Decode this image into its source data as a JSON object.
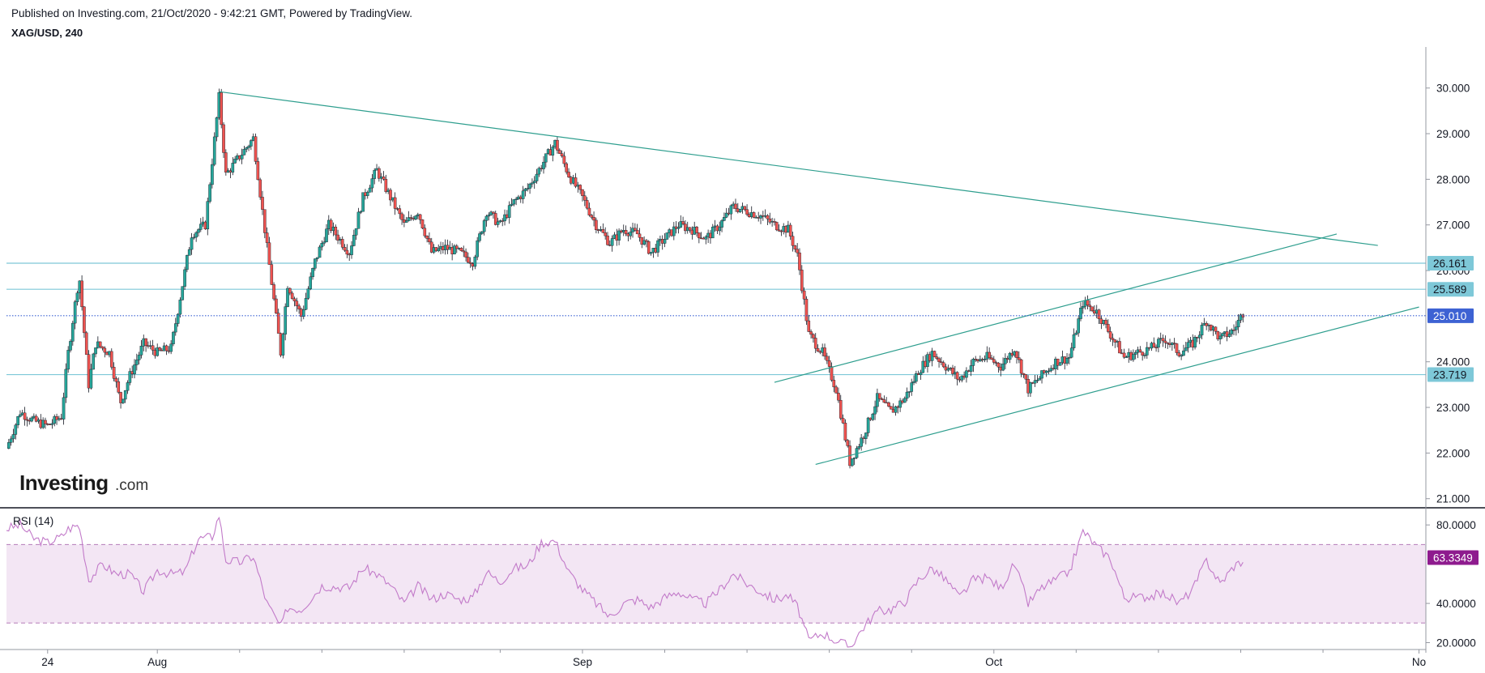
{
  "header": {
    "published": "Published on Investing.com, 21/Oct/2020 - 9:42:21 GMT, Powered by TradingView.",
    "symbol": "XAG/USD, 240"
  },
  "logo": {
    "brand": "Investing",
    "suffix": ".com"
  },
  "colors": {
    "up": "#26a69a",
    "down": "#ef5350",
    "wick": "#131722",
    "trendline": "#2e9e8e",
    "hline": "#7ec8d8",
    "current": "#3d62d3",
    "rsi_line": "#c27ac9",
    "rsi_band": "#f3e6f4",
    "rsi_badge": "#8e1b8e"
  },
  "chart_data": [
    {
      "type": "candlestick",
      "title": "XAG/USD, 240",
      "ylim": [
        20.8,
        30.9
      ],
      "y_ticks": [
        "30.000",
        "29.000",
        "28.000",
        "27.000",
        "26.000",
        "24.000",
        "23.000",
        "22.000",
        "21.000"
      ],
      "y_tick_values": [
        30,
        29,
        28,
        27,
        26,
        24,
        23,
        22,
        21
      ],
      "x_ticks": [
        {
          "label": "24",
          "day": 0
        },
        {
          "label": "Aug",
          "day": 8
        },
        {
          "label": "Sep",
          "day": 39
        },
        {
          "label": "Oct",
          "day": 69
        },
        {
          "label": "No",
          "day": 100
        }
      ],
      "x_minor_days": [
        14,
        20,
        26,
        33,
        45,
        51,
        57,
        63,
        75,
        81,
        87,
        93
      ],
      "x_range_days": [
        -3,
        100.5
      ],
      "close_path": [
        [
          -3,
          22.1
        ],
        [
          -2,
          22.9
        ],
        [
          -1,
          22.7
        ],
        [
          0,
          22.6
        ],
        [
          1,
          22.8
        ],
        [
          1.5,
          24.2
        ],
        [
          2.3,
          25.9
        ],
        [
          3,
          23.5
        ],
        [
          3.5,
          24.4
        ],
        [
          4.5,
          24.2
        ],
        [
          5.3,
          23.1
        ],
        [
          6,
          23.7
        ],
        [
          7,
          24.4
        ],
        [
          8,
          24.2
        ],
        [
          9,
          24.3
        ],
        [
          10.5,
          26.8
        ],
        [
          11.5,
          27.0
        ],
        [
          12.5,
          29.8
        ],
        [
          13,
          28.1
        ],
        [
          14,
          28.5
        ],
        [
          15,
          28.9
        ],
        [
          16,
          26.5
        ],
        [
          17,
          24.2
        ],
        [
          17.5,
          25.7
        ],
        [
          18.5,
          25.0
        ],
        [
          19.5,
          26.2
        ],
        [
          20.5,
          27.0
        ],
        [
          22,
          26.4
        ],
        [
          23,
          27.6
        ],
        [
          24,
          28.2
        ],
        [
          25,
          27.6
        ],
        [
          26,
          27.0
        ],
        [
          27,
          27.3
        ],
        [
          28,
          26.4
        ],
        [
          29,
          26.5
        ],
        [
          30,
          26.4
        ],
        [
          31,
          26.2
        ],
        [
          32,
          27.3
        ],
        [
          33,
          27.0
        ],
        [
          34,
          27.5
        ],
        [
          35,
          27.8
        ],
        [
          36,
          28.3
        ],
        [
          37,
          28.8
        ],
        [
          38,
          28.1
        ],
        [
          39,
          27.6
        ],
        [
          40,
          27.0
        ],
        [
          41,
          26.6
        ],
        [
          42,
          26.9
        ],
        [
          43,
          26.8
        ],
        [
          44,
          26.4
        ],
        [
          45,
          26.7
        ],
        [
          46,
          27.0
        ],
        [
          47,
          26.9
        ],
        [
          48,
          26.7
        ],
        [
          49,
          27.0
        ],
        [
          50,
          27.4
        ],
        [
          51,
          27.3
        ],
        [
          52,
          27.2
        ],
        [
          53,
          27.0
        ],
        [
          54,
          26.9
        ],
        [
          54.7,
          26.3
        ],
        [
          55.5,
          24.6
        ],
        [
          56.5,
          24.2
        ],
        [
          57.5,
          23.4
        ],
        [
          58.5,
          21.8
        ],
        [
          59.5,
          22.4
        ],
        [
          60.5,
          23.2
        ],
        [
          61.5,
          22.9
        ],
        [
          62.5,
          23.2
        ],
        [
          63.5,
          23.8
        ],
        [
          64.5,
          24.2
        ],
        [
          65.5,
          23.9
        ],
        [
          66.5,
          23.6
        ],
        [
          67.5,
          24.0
        ],
        [
          68.5,
          24.1
        ],
        [
          69.5,
          23.9
        ],
        [
          70.5,
          24.3
        ],
        [
          71.5,
          23.4
        ],
        [
          72.5,
          23.7
        ],
        [
          73.5,
          24.0
        ],
        [
          74.5,
          24.1
        ],
        [
          75.5,
          25.3
        ],
        [
          76.5,
          25.1
        ],
        [
          77.5,
          24.6
        ],
        [
          78.5,
          24.1
        ],
        [
          79.5,
          24.2
        ],
        [
          80.5,
          24.3
        ],
        [
          81.5,
          24.5
        ],
        [
          82.5,
          24.2
        ],
        [
          83.5,
          24.4
        ],
        [
          84.5,
          24.9
        ],
        [
          85.5,
          24.5
        ],
        [
          86.5,
          24.7
        ],
        [
          87.2,
          25.1
        ]
      ],
      "overlays": {
        "horizontal_lines": [
          {
            "value": 26.161,
            "label": "26.161"
          },
          {
            "value": 25.589,
            "label": "25.589"
          },
          {
            "value": 23.719,
            "label": "23.719"
          }
        ],
        "current_price": {
          "value": 25.01,
          "label": "25.010"
        },
        "trendlines": [
          {
            "from": [
              12.5,
              29.92
            ],
            "to": [
              97,
              26.55
            ]
          },
          {
            "from": [
              56,
              21.75
            ],
            "to": [
              100,
              25.2
            ]
          },
          {
            "from": [
              53,
              23.55
            ],
            "to": [
              94,
              26.8
            ]
          }
        ]
      }
    },
    {
      "type": "line",
      "title": "RSI (14)",
      "ylim": [
        16.5,
        87.5
      ],
      "y_ticks": [
        "80.0000",
        "40.0000",
        "20.0000"
      ],
      "y_tick_values": [
        80,
        40,
        20
      ],
      "band": [
        30,
        70
      ],
      "current": {
        "value": 63.3349,
        "label": "63.3349"
      },
      "path": [
        [
          -3,
          78
        ],
        [
          -2,
          80
        ],
        [
          -1,
          73
        ],
        [
          0,
          71
        ],
        [
          1,
          74
        ],
        [
          1.5,
          78
        ],
        [
          2.3,
          80
        ],
        [
          3,
          52
        ],
        [
          4,
          60
        ],
        [
          5,
          55
        ],
        [
          6,
          55
        ],
        [
          7,
          46
        ],
        [
          8,
          57
        ],
        [
          9,
          55
        ],
        [
          10,
          56
        ],
        [
          11,
          73
        ],
        [
          12,
          74
        ],
        [
          12.5,
          85
        ],
        [
          13,
          62
        ],
        [
          14,
          61
        ],
        [
          15,
          64
        ],
        [
          16,
          40
        ],
        [
          17,
          28
        ],
        [
          17.5,
          38
        ],
        [
          18.5,
          37
        ],
        [
          20,
          49
        ],
        [
          22,
          48
        ],
        [
          23,
          58
        ],
        [
          24,
          55
        ],
        [
          25,
          49
        ],
        [
          26,
          40
        ],
        [
          27,
          49
        ],
        [
          28,
          42
        ],
        [
          29,
          45
        ],
        [
          30,
          42
        ],
        [
          31,
          43
        ],
        [
          32,
          56
        ],
        [
          33,
          51
        ],
        [
          34,
          58
        ],
        [
          35,
          59
        ],
        [
          36,
          71
        ],
        [
          37,
          72
        ],
        [
          38,
          56
        ],
        [
          39,
          47
        ],
        [
          40,
          40
        ],
        [
          41,
          33
        ],
        [
          42,
          40
        ],
        [
          43,
          42
        ],
        [
          44,
          38
        ],
        [
          45,
          43
        ],
        [
          46,
          46
        ],
        [
          47,
          42
        ],
        [
          48,
          40
        ],
        [
          49,
          47
        ],
        [
          50,
          55
        ],
        [
          51,
          50
        ],
        [
          52,
          46
        ],
        [
          53,
          42
        ],
        [
          54,
          44
        ],
        [
          54.7,
          38
        ],
        [
          55.5,
          21
        ],
        [
          56.5,
          25
        ],
        [
          57.5,
          21
        ],
        [
          58.5,
          18
        ],
        [
          59.5,
          28
        ],
        [
          60.5,
          36
        ],
        [
          61.5,
          37
        ],
        [
          62.5,
          41
        ],
        [
          63.5,
          52
        ],
        [
          64.5,
          58
        ],
        [
          65.5,
          52
        ],
        [
          66.5,
          43
        ],
        [
          67.5,
          52
        ],
        [
          68.5,
          53
        ],
        [
          69.5,
          48
        ],
        [
          70.5,
          60
        ],
        [
          71.5,
          40
        ],
        [
          72.5,
          48
        ],
        [
          73.5,
          52
        ],
        [
          74.5,
          56
        ],
        [
          75.5,
          77
        ],
        [
          76.5,
          69
        ],
        [
          77.5,
          63
        ],
        [
          78.5,
          43
        ],
        [
          79.5,
          43
        ],
        [
          80.5,
          44
        ],
        [
          81.5,
          45
        ],
        [
          82.5,
          40
        ],
        [
          83.5,
          47
        ],
        [
          84.5,
          62
        ],
        [
          85.5,
          50
        ],
        [
          86.5,
          59
        ],
        [
          87.2,
          62
        ]
      ]
    }
  ]
}
